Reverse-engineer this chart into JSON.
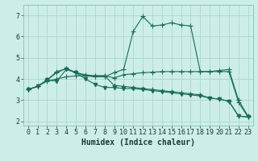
{
  "xlabel": "Humidex (Indice chaleur)",
  "bg_color": "#cdeee8",
  "grid_color": "#a8d8cc",
  "line_color": "#1a6b5a",
  "xlim": [
    -0.5,
    23.5
  ],
  "ylim": [
    1.8,
    7.5
  ],
  "xticks": [
    0,
    1,
    2,
    3,
    4,
    5,
    6,
    7,
    8,
    9,
    10,
    11,
    12,
    13,
    14,
    15,
    16,
    17,
    18,
    19,
    20,
    21,
    22,
    23
  ],
  "yticks": [
    2,
    3,
    4,
    5,
    6,
    7
  ],
  "line1_x": [
    0,
    1,
    2,
    3,
    4,
    5,
    6,
    7,
    8,
    9,
    10,
    11,
    12,
    13,
    14,
    15,
    16,
    17,
    18,
    19,
    20,
    21,
    22,
    23
  ],
  "line1_y": [
    3.5,
    3.65,
    3.95,
    4.35,
    4.48,
    4.3,
    4.15,
    4.1,
    4.1,
    4.3,
    4.45,
    6.25,
    6.95,
    6.5,
    6.55,
    6.65,
    6.55,
    6.5,
    4.35,
    4.35,
    4.4,
    4.45,
    3.0,
    2.25
  ],
  "line2_x": [
    0,
    1,
    2,
    3,
    4,
    5,
    6,
    7,
    8,
    9,
    10,
    11,
    12,
    13,
    14,
    15,
    16,
    17,
    18,
    19,
    20,
    21,
    22,
    23
  ],
  "line2_y": [
    3.5,
    3.65,
    3.95,
    4.3,
    4.5,
    4.3,
    4.2,
    4.15,
    4.15,
    3.7,
    3.65,
    3.6,
    3.55,
    3.5,
    3.45,
    3.4,
    3.35,
    3.3,
    3.25,
    3.1,
    3.05,
    2.95,
    2.25,
    2.2
  ],
  "line3_x": [
    0,
    1,
    2,
    3,
    4,
    5,
    6,
    7,
    8,
    9,
    10,
    11,
    12,
    13,
    14,
    15,
    16,
    17,
    18,
    19,
    20,
    21,
    22,
    23
  ],
  "line3_y": [
    3.5,
    3.65,
    3.9,
    4.0,
    4.1,
    4.15,
    4.15,
    4.15,
    4.15,
    4.05,
    4.2,
    4.25,
    4.3,
    4.32,
    4.35,
    4.35,
    4.35,
    4.35,
    4.35,
    4.35,
    4.35,
    4.35,
    2.9,
    2.2
  ],
  "line4_x": [
    0,
    1,
    2,
    3,
    4,
    5,
    6,
    7,
    8,
    9,
    10,
    11,
    12,
    13,
    14,
    15,
    16,
    17,
    18,
    19,
    20,
    21,
    22,
    23
  ],
  "line4_y": [
    3.5,
    3.65,
    3.95,
    3.9,
    4.45,
    4.3,
    4.0,
    3.75,
    3.6,
    3.6,
    3.55,
    3.55,
    3.5,
    3.45,
    3.4,
    3.35,
    3.3,
    3.25,
    3.2,
    3.1,
    3.05,
    2.95,
    2.25,
    2.2
  ],
  "tick_fontsize": 6,
  "xlabel_fontsize": 7,
  "marker_size": 2,
  "line_width": 0.8
}
